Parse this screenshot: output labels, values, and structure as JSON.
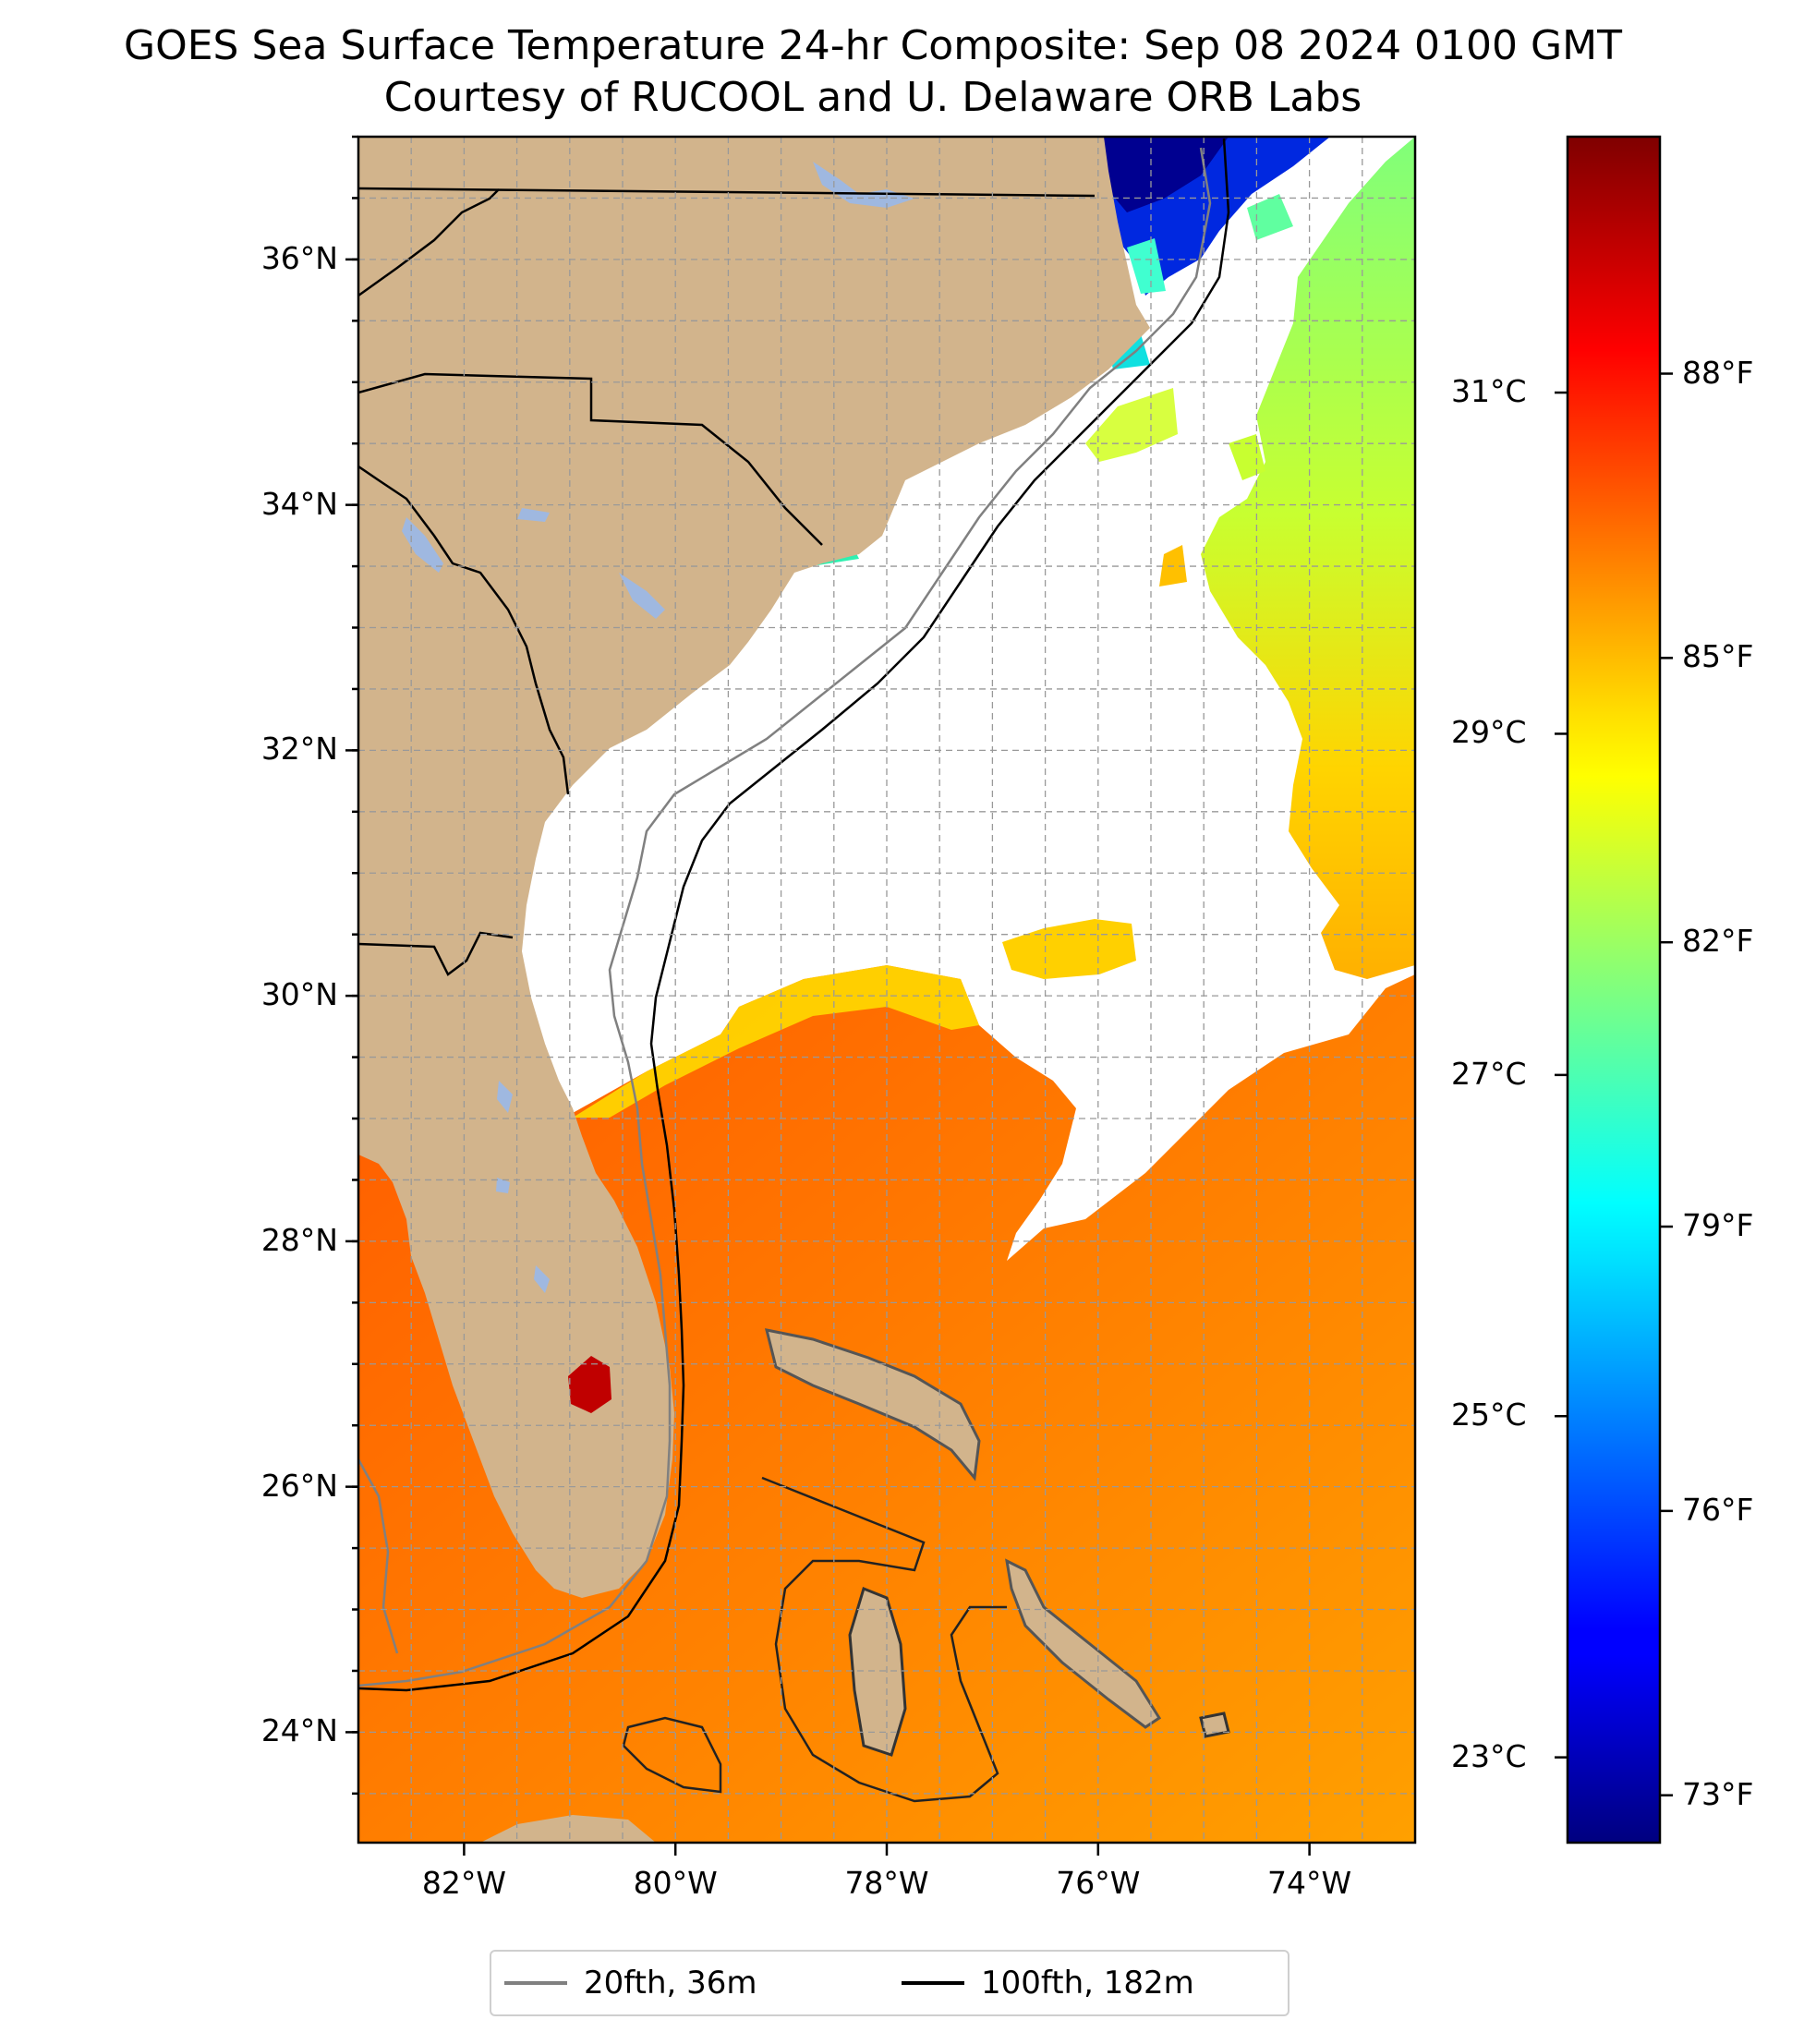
{
  "title": {
    "line1": "GOES Sea Surface Temperature 24-hr Composite: Sep 08 2024 0100 GMT",
    "line2": "Courtesy of RUCOOL and U. Delaware ORB Labs"
  },
  "map": {
    "lon_range": [
      -83,
      -73
    ],
    "lat_range": [
      23.1,
      37.0
    ],
    "lat_ticks": [
      {
        "value": 24,
        "label": "24°N"
      },
      {
        "value": 26,
        "label": "26°N"
      },
      {
        "value": 28,
        "label": "28°N"
      },
      {
        "value": 30,
        "label": "30°N"
      },
      {
        "value": 32,
        "label": "32°N"
      },
      {
        "value": 34,
        "label": "34°N"
      },
      {
        "value": 36,
        "label": "36°N"
      }
    ],
    "lon_ticks": [
      {
        "value": -82,
        "label": "82°W"
      },
      {
        "value": -80,
        "label": "80°W"
      },
      {
        "value": -78,
        "label": "78°W"
      },
      {
        "value": -76,
        "label": "76°W"
      },
      {
        "value": -74,
        "label": "74°W"
      }
    ],
    "gridlines": true,
    "colors": {
      "land": "#d2b48c",
      "lakes": "#9fb8e0",
      "no_data": "#ffffff",
      "contour_20fth": "#808080",
      "contour_100fth": "#000000"
    }
  },
  "colorbar": {
    "colormap": "jet",
    "range_f": [
      72.5,
      90.5
    ],
    "fahrenheit_ticks": [
      {
        "value": 73,
        "label": "73°F"
      },
      {
        "value": 76,
        "label": "76°F"
      },
      {
        "value": 79,
        "label": "79°F"
      },
      {
        "value": 82,
        "label": "82°F"
      },
      {
        "value": 85,
        "label": "85°F"
      },
      {
        "value": 88,
        "label": "88°F"
      }
    ],
    "celsius_ticks": [
      {
        "value": 23,
        "label": "23°C"
      },
      {
        "value": 25,
        "label": "25°C"
      },
      {
        "value": 27,
        "label": "27°C"
      },
      {
        "value": 29,
        "label": "29°C"
      },
      {
        "value": 31,
        "label": "31°C"
      }
    ]
  },
  "legend": {
    "placement": "bottom-center",
    "items": [
      {
        "label": "20fth, 36m",
        "color": "#808080"
      },
      {
        "label": "100fth, 182m",
        "color": "#000000"
      }
    ]
  }
}
